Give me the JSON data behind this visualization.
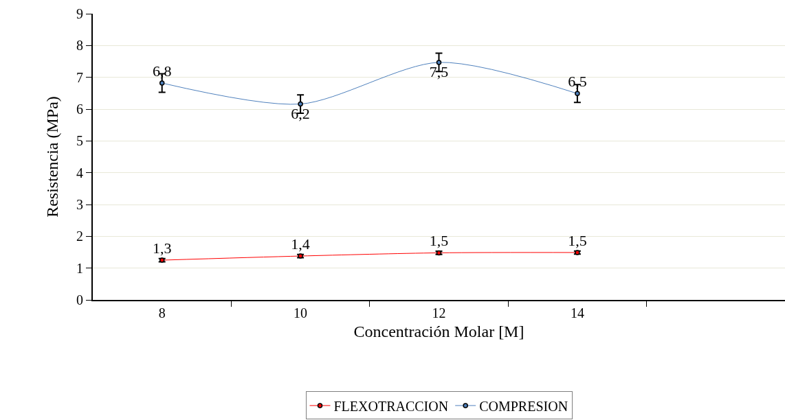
{
  "chart_data": {
    "type": "line",
    "xlabel": "Concentración Molar [M]",
    "ylabel": "Resistencia (MPa)",
    "categories": [
      "8",
      "10",
      "12",
      "14",
      null
    ],
    "series": [
      {
        "name": "FLEXOTRACCION",
        "color": "#ff0000",
        "values": [
          1.25,
          1.38,
          1.48,
          1.49,
          null
        ],
        "errors": [
          0.05,
          0.05,
          0.05,
          0.05,
          null
        ],
        "value_labels": [
          "1,3",
          "1,4",
          "1,5",
          "1,5",
          null
        ]
      },
      {
        "name": "COMPRESION",
        "color": "#4f81bd",
        "values": [
          6.82,
          6.16,
          7.47,
          6.49,
          null
        ],
        "errors": [
          0.29,
          0.29,
          0.29,
          0.28,
          null
        ],
        "value_labels": [
          "6,8",
          "6,2",
          "7,5",
          "6,5",
          null
        ]
      }
    ],
    "ylim": [
      0,
      9
    ],
    "yticks": [
      0,
      1,
      2,
      3,
      4,
      5,
      6,
      7,
      8,
      9
    ],
    "grid": "y",
    "legend": "bottom",
    "marker": "circle",
    "line_style": "solid"
  }
}
